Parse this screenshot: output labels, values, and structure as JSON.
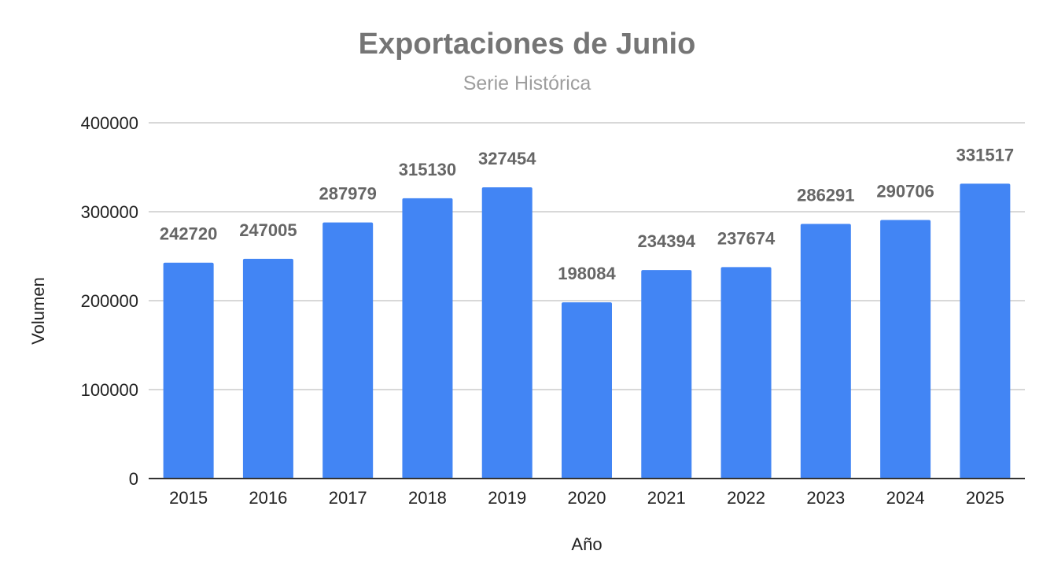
{
  "chart_data": {
    "type": "bar",
    "title": "Exportaciones de Junio",
    "subtitle": "Serie Histórica",
    "xlabel": "Año",
    "ylabel": "Volumen",
    "categories": [
      "2015",
      "2016",
      "2017",
      "2018",
      "2019",
      "2020",
      "2021",
      "2022",
      "2023",
      "2024",
      "2025"
    ],
    "values": [
      242720,
      247005,
      287979,
      315130,
      327454,
      198084,
      234394,
      237674,
      286291,
      290706,
      331517
    ],
    "data_labels": [
      "242720",
      "247005",
      "287979",
      "315130",
      "327454",
      "198084",
      "234394",
      "237674",
      "286291",
      "290706",
      "331517"
    ],
    "ylim": [
      0,
      400000
    ],
    "yticks": [
      "0",
      "100000",
      "200000",
      "300000",
      "400000"
    ],
    "grid": true,
    "legend": "none",
    "bar_color": "#4285f4"
  }
}
